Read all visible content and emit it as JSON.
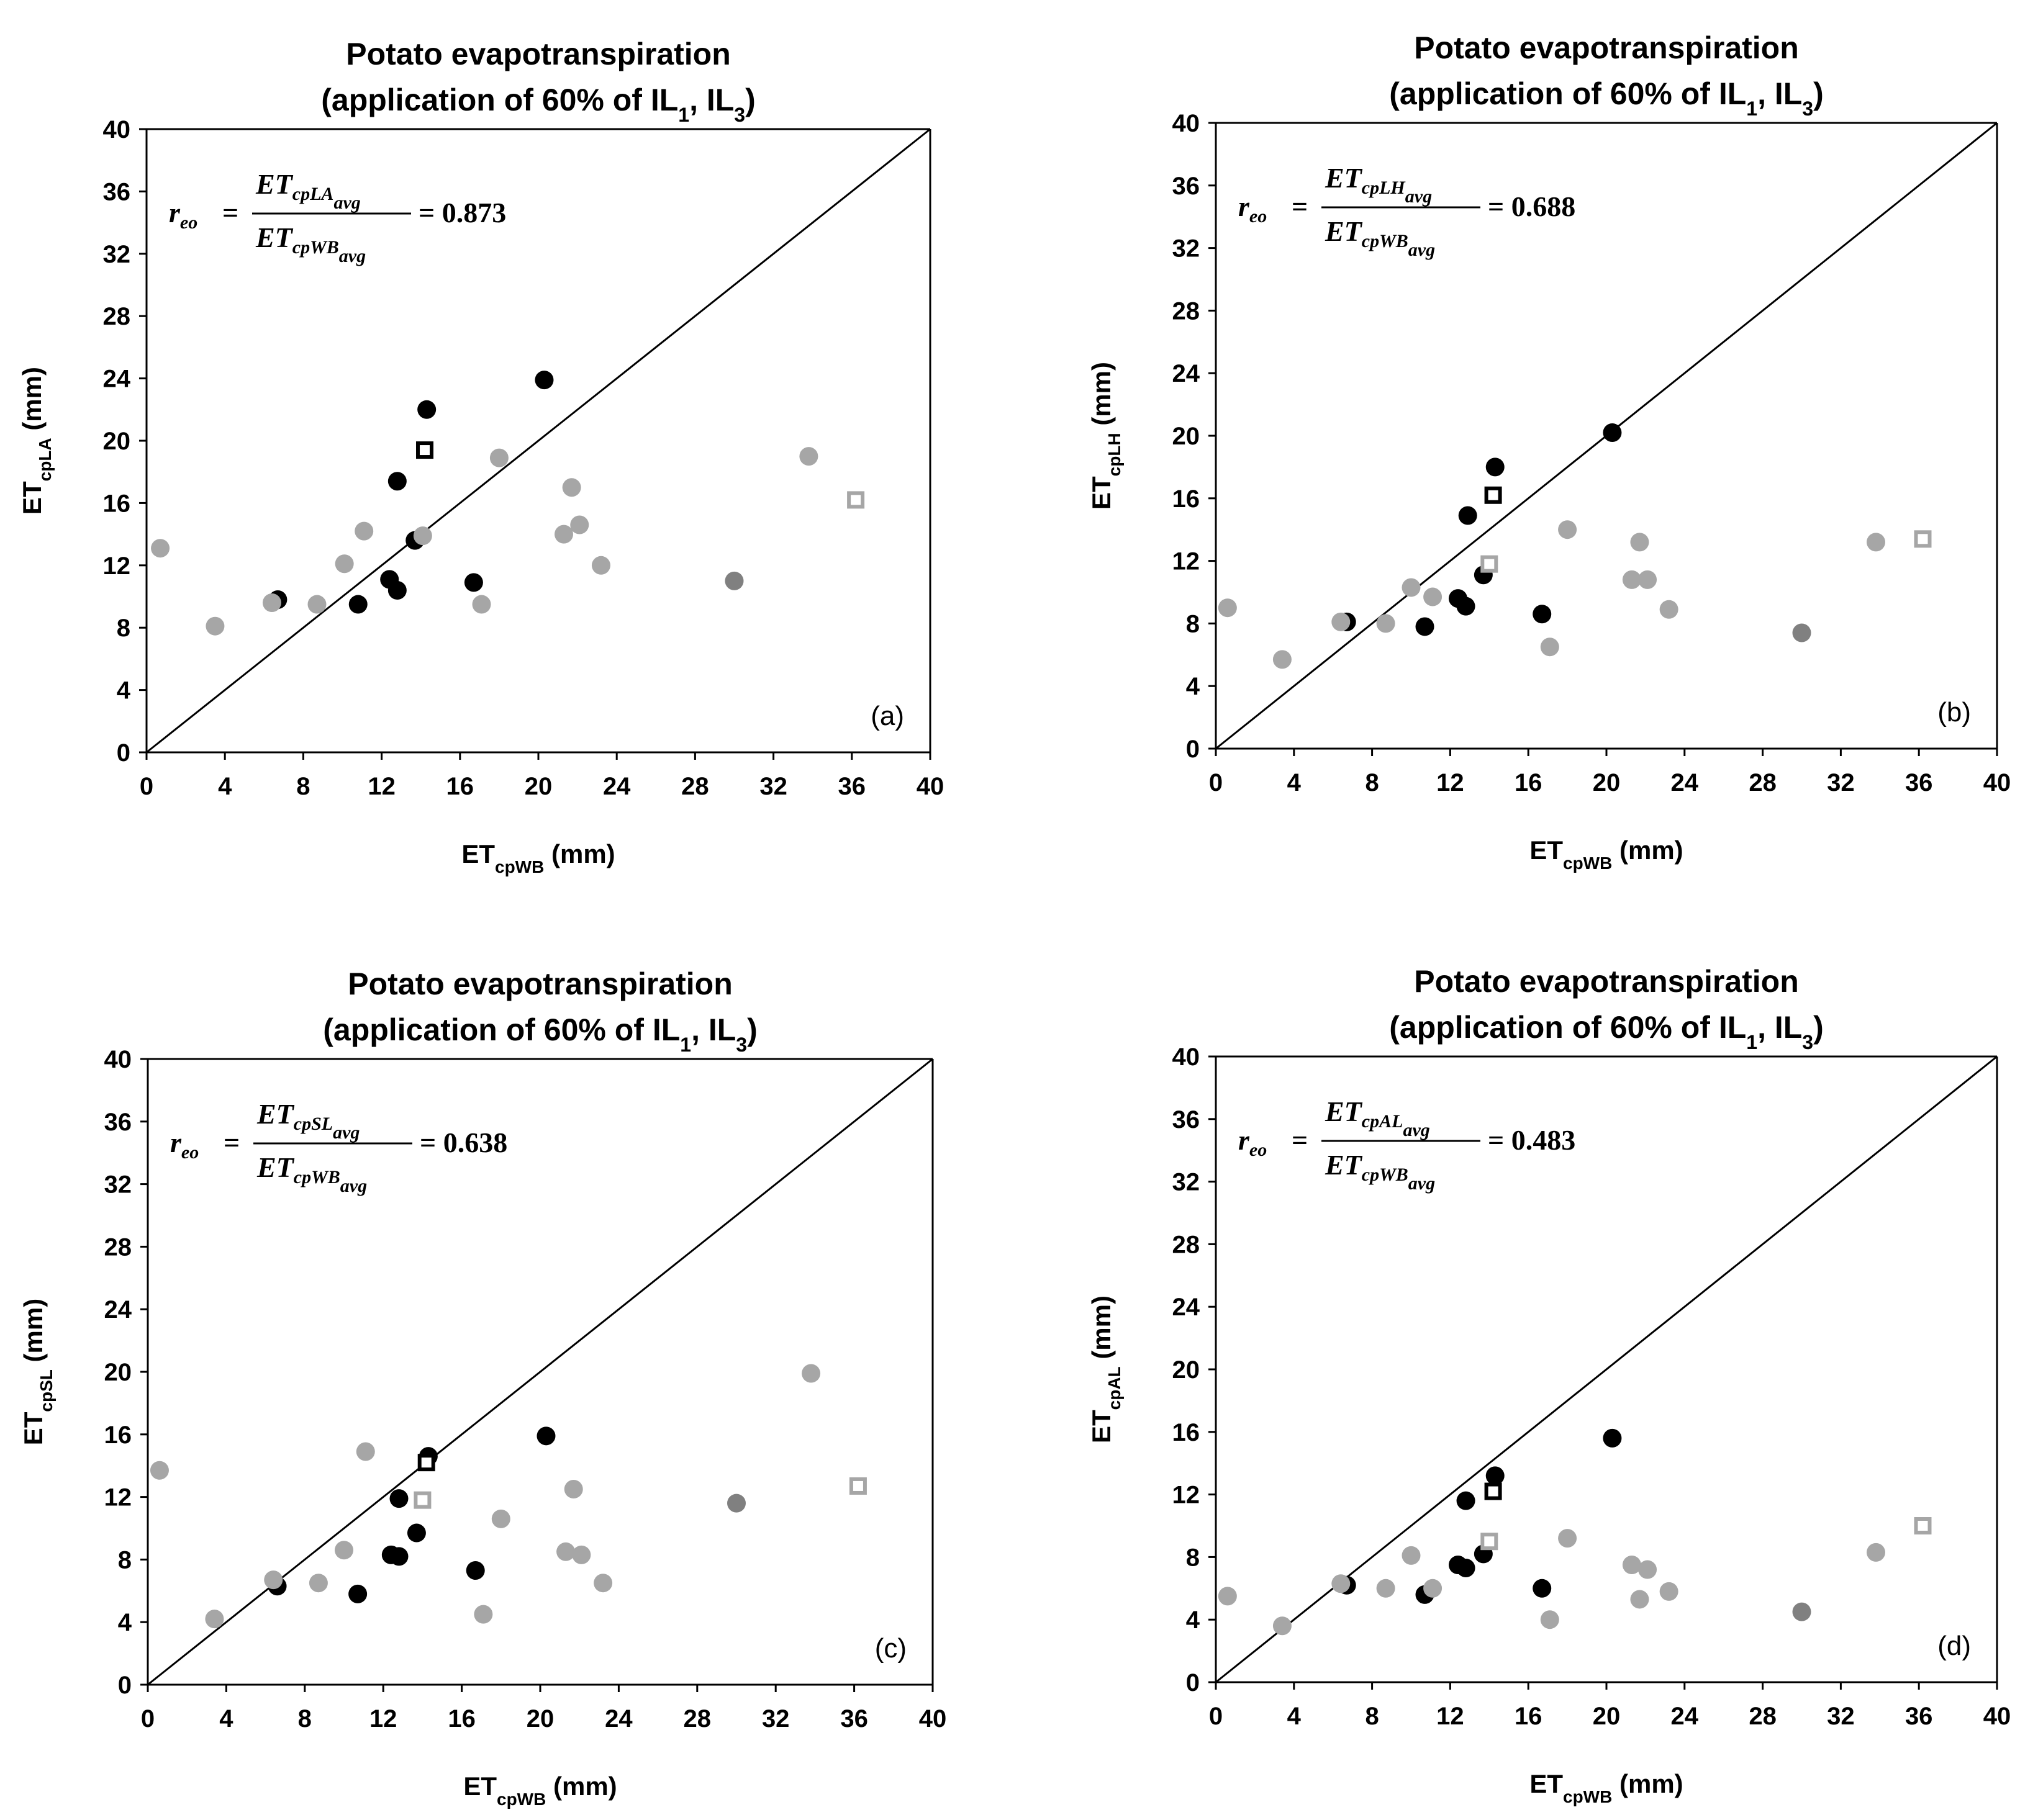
{
  "chart_data": [
    {
      "type": "scatter",
      "panel": "(a)",
      "title_line1": "Potato evapotranspiration",
      "title_line2": {
        "pre": "(application of 60% of IL",
        "sub1": "1",
        "mid": ", IL",
        "sub2": "3",
        "post": ")"
      },
      "xlabel": {
        "main": "ET",
        "sub": "cpWB",
        "post": " (mm)"
      },
      "ylabel": {
        "main": "ET",
        "sub": "cpLA",
        "post": " (mm)"
      },
      "xlim": [
        0,
        40
      ],
      "ylim": [
        0,
        40
      ],
      "ticks": [
        "0",
        "4",
        "8",
        "12",
        "16",
        "20",
        "24",
        "28",
        "32",
        "36",
        "40"
      ],
      "one_to_one_line": true,
      "equation": {
        "lhs": "r",
        "lhs_sub": "eo",
        "num": "ET",
        "num_sub": "cpLA",
        "num_subsub": "avg",
        "den": "ET",
        "den_sub": "cpWB",
        "den_subsub": "avg",
        "value": "= 0.873"
      },
      "series": [
        {
          "name": "black circles",
          "marker": "circle",
          "color": "#000000",
          "points": [
            [
              6.7,
              9.8
            ],
            [
              10.8,
              9.5
            ],
            [
              12.4,
              11.1
            ],
            [
              12.8,
              10.4
            ],
            [
              12.8,
              17.4
            ],
            [
              13.7,
              13.6
            ],
            [
              14.3,
              22.0
            ],
            [
              16.7,
              10.9
            ],
            [
              20.3,
              23.9
            ]
          ]
        },
        {
          "name": "light gray circles",
          "marker": "circle",
          "color": "#a6a6a6",
          "points": [
            [
              0.7,
              13.1
            ],
            [
              3.5,
              8.1
            ],
            [
              6.4,
              9.6
            ],
            [
              8.7,
              9.5
            ],
            [
              10.1,
              12.1
            ],
            [
              11.1,
              14.2
            ],
            [
              14.1,
              13.9
            ],
            [
              17.1,
              9.5
            ],
            [
              18.0,
              18.9
            ],
            [
              21.3,
              14.0
            ],
            [
              21.7,
              17.0
            ],
            [
              22.1,
              14.6
            ],
            [
              23.2,
              12.0
            ],
            [
              33.8,
              19.0
            ]
          ]
        },
        {
          "name": "dark gray circles",
          "marker": "circle",
          "color": "#808080",
          "points": [
            [
              30.0,
              11.0
            ]
          ]
        },
        {
          "name": "black open squares",
          "marker": "square-open",
          "color": "#000000",
          "points": [
            [
              14.2,
              19.4
            ]
          ]
        },
        {
          "name": "gray open squares",
          "marker": "square-open",
          "color": "#a6a6a6",
          "points": [
            [
              36.2,
              16.2
            ]
          ]
        }
      ]
    },
    {
      "type": "scatter",
      "panel": "(b)",
      "title_line1": "Potato evapotranspiration",
      "title_line2": {
        "pre": "(application of 60% of IL",
        "sub1": "1",
        "mid": ", IL",
        "sub2": "3",
        "post": ")"
      },
      "xlabel": {
        "main": "ET",
        "sub": "cpWB",
        "post": " (mm)"
      },
      "ylabel": {
        "main": "ET",
        "sub": "cpLH",
        "post": " (mm)"
      },
      "xlim": [
        0,
        40
      ],
      "ylim": [
        0,
        40
      ],
      "ticks": [
        "0",
        "4",
        "8",
        "12",
        "16",
        "20",
        "24",
        "28",
        "32",
        "36",
        "40"
      ],
      "one_to_one_line": true,
      "equation": {
        "lhs": "r",
        "lhs_sub": "eo",
        "num": "ET",
        "num_sub": "cpLH",
        "num_subsub": "avg",
        "den": "ET",
        "den_sub": "cpWB",
        "den_subsub": "avg",
        "value": "= 0.688"
      },
      "series": [
        {
          "name": "black circles",
          "marker": "circle",
          "color": "#000000",
          "points": [
            [
              6.7,
              8.1
            ],
            [
              10.7,
              7.8
            ],
            [
              12.4,
              9.6
            ],
            [
              12.8,
              9.1
            ],
            [
              12.9,
              14.9
            ],
            [
              13.7,
              11.1
            ],
            [
              14.3,
              18.0
            ],
            [
              16.7,
              8.6
            ],
            [
              20.3,
              20.2
            ]
          ]
        },
        {
          "name": "light gray circles",
          "marker": "circle",
          "color": "#a6a6a6",
          "points": [
            [
              0.6,
              9.0
            ],
            [
              3.4,
              5.7
            ],
            [
              6.4,
              8.1
            ],
            [
              8.7,
              8.0
            ],
            [
              10.0,
              10.3
            ],
            [
              11.1,
              9.7
            ],
            [
              17.1,
              6.5
            ],
            [
              18.0,
              14.0
            ],
            [
              21.3,
              10.8
            ],
            [
              21.7,
              13.2
            ],
            [
              22.1,
              10.8
            ],
            [
              23.2,
              8.9
            ],
            [
              33.8,
              13.2
            ]
          ]
        },
        {
          "name": "dark gray circles",
          "marker": "circle",
          "color": "#808080",
          "points": [
            [
              30.0,
              7.4
            ]
          ]
        },
        {
          "name": "black open squares",
          "marker": "square-open",
          "color": "#000000",
          "points": [
            [
              14.2,
              16.2
            ]
          ]
        },
        {
          "name": "gray open squares",
          "marker": "square-open",
          "color": "#a6a6a6",
          "points": [
            [
              14.0,
              11.8
            ],
            [
              36.2,
              13.4
            ]
          ]
        }
      ]
    },
    {
      "type": "scatter",
      "panel": "(c)",
      "title_line1": "Potato evapotranspiration",
      "title_line2": {
        "pre": "(application of 60% of IL",
        "sub1": "1",
        "mid": ", IL",
        "sub2": "3",
        "post": ")"
      },
      "xlabel": {
        "main": "ET",
        "sub": "cpWB",
        "post": " (mm)"
      },
      "ylabel": {
        "main": "ET",
        "sub": "cpSL",
        "post": " (mm)"
      },
      "xlim": [
        0,
        40
      ],
      "ylim": [
        0,
        40
      ],
      "ticks": [
        "0",
        "4",
        "8",
        "12",
        "16",
        "20",
        "24",
        "28",
        "32",
        "36",
        "40"
      ],
      "one_to_one_line": true,
      "equation": {
        "lhs": "r",
        "lhs_sub": "eo",
        "num": "ET",
        "num_sub": "cpSL",
        "num_subsub": "avg",
        "den": "ET",
        "den_sub": "cpWB",
        "den_subsub": "avg",
        "value": "= 0.638"
      },
      "series": [
        {
          "name": "black circles",
          "marker": "circle",
          "color": "#000000",
          "points": [
            [
              6.6,
              6.3
            ],
            [
              10.7,
              5.8
            ],
            [
              12.4,
              8.3
            ],
            [
              12.8,
              8.2
            ],
            [
              12.8,
              11.9
            ],
            [
              13.7,
              9.7
            ],
            [
              14.3,
              14.6
            ],
            [
              16.7,
              7.3
            ],
            [
              20.3,
              15.9
            ]
          ]
        },
        {
          "name": "light gray circles",
          "marker": "circle",
          "color": "#a6a6a6",
          "points": [
            [
              0.6,
              13.7
            ],
            [
              3.4,
              4.2
            ],
            [
              6.4,
              6.7
            ],
            [
              8.7,
              6.5
            ],
            [
              10.0,
              8.6
            ],
            [
              11.1,
              14.9
            ],
            [
              17.1,
              4.5
            ],
            [
              18.0,
              10.6
            ],
            [
              21.3,
              8.5
            ],
            [
              21.7,
              12.5
            ],
            [
              22.1,
              8.3
            ],
            [
              23.2,
              6.5
            ],
            [
              33.8,
              19.9
            ]
          ]
        },
        {
          "name": "dark gray circles",
          "marker": "circle",
          "color": "#808080",
          "points": [
            [
              30.0,
              11.6
            ]
          ]
        },
        {
          "name": "black open squares",
          "marker": "square-open",
          "color": "#000000",
          "points": [
            [
              14.2,
              14.2
            ]
          ]
        },
        {
          "name": "gray open squares",
          "marker": "square-open",
          "color": "#a6a6a6",
          "points": [
            [
              14.0,
              11.8
            ],
            [
              36.2,
              12.7
            ]
          ]
        }
      ]
    },
    {
      "type": "scatter",
      "panel": "(d)",
      "title_line1": "Potato evapotranspiration",
      "title_line2": {
        "pre": "(application of 60% of IL",
        "sub1": "1",
        "mid": ", IL",
        "sub2": "3",
        "post": ")"
      },
      "xlabel": {
        "main": "ET",
        "sub": "cpWB",
        "post": " (mm)"
      },
      "ylabel": {
        "main": "ET",
        "sub": "cpAL",
        "post": " (mm)"
      },
      "xlim": [
        0,
        40
      ],
      "ylim": [
        0,
        40
      ],
      "ticks": [
        "0",
        "4",
        "8",
        "12",
        "16",
        "20",
        "24",
        "28",
        "32",
        "36",
        "40"
      ],
      "one_to_one_line": true,
      "equation": {
        "lhs": "r",
        "lhs_sub": "eo",
        "num": "ET",
        "num_sub": "cpAL",
        "num_subsub": "avg",
        "den": "ET",
        "den_sub": "cpWB",
        "den_subsub": "avg",
        "value": "= 0.483"
      },
      "series": [
        {
          "name": "black circles",
          "marker": "circle",
          "color": "#000000",
          "points": [
            [
              6.7,
              6.2
            ],
            [
              10.7,
              5.6
            ],
            [
              12.4,
              7.5
            ],
            [
              12.8,
              7.3
            ],
            [
              12.8,
              11.6
            ],
            [
              13.7,
              8.2
            ],
            [
              14.3,
              13.2
            ],
            [
              16.7,
              6.0
            ],
            [
              20.3,
              15.6
            ]
          ]
        },
        {
          "name": "light gray circles",
          "marker": "circle",
          "color": "#a6a6a6",
          "points": [
            [
              0.6,
              5.5
            ],
            [
              3.4,
              3.6
            ],
            [
              6.4,
              6.3
            ],
            [
              8.7,
              6.0
            ],
            [
              10.0,
              8.1
            ],
            [
              11.1,
              6.0
            ],
            [
              17.1,
              4.0
            ],
            [
              18.0,
              9.2
            ],
            [
              21.3,
              7.5
            ],
            [
              21.7,
              5.3
            ],
            [
              22.1,
              7.2
            ],
            [
              23.2,
              5.8
            ],
            [
              33.8,
              8.3
            ]
          ]
        },
        {
          "name": "dark gray circles",
          "marker": "circle",
          "color": "#808080",
          "points": [
            [
              30.0,
              4.5
            ]
          ]
        },
        {
          "name": "black open squares",
          "marker": "square-open",
          "color": "#000000",
          "points": [
            [
              14.2,
              12.2
            ]
          ]
        },
        {
          "name": "gray open squares",
          "marker": "square-open",
          "color": "#a6a6a6",
          "points": [
            [
              14.0,
              9.0
            ],
            [
              36.2,
              10.0
            ]
          ]
        }
      ]
    }
  ]
}
